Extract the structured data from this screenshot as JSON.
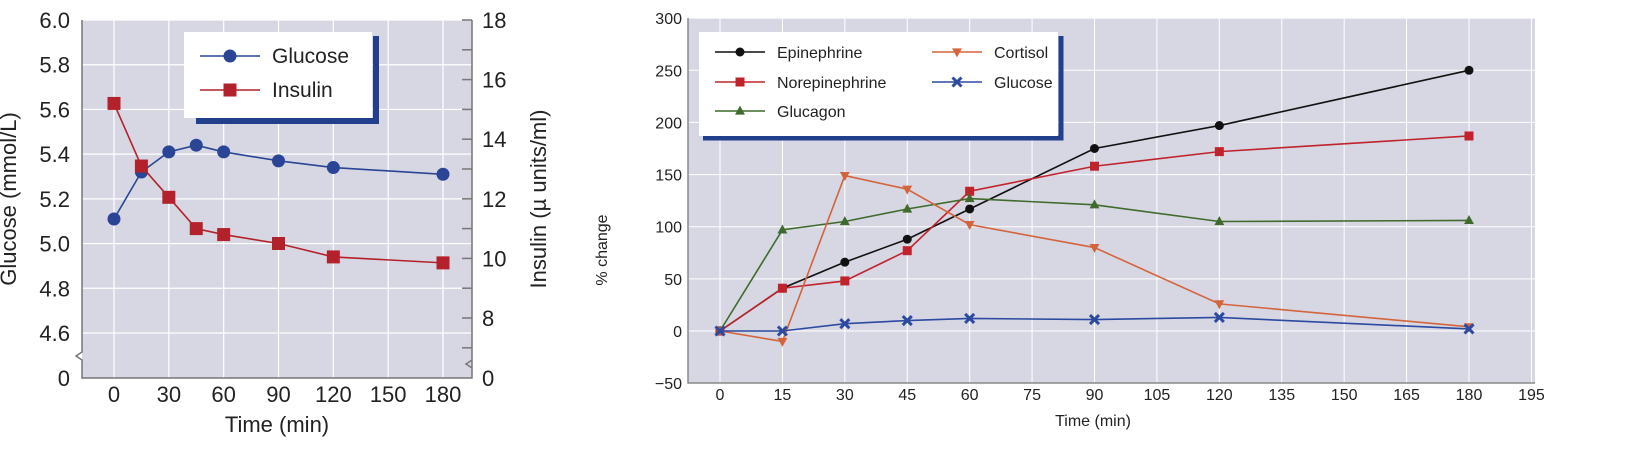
{
  "chart_data": [
    {
      "type": "line",
      "xlabel": "Time (min)",
      "ylabel": "Glucose (mmol/L)",
      "y2label": "Insulin (µ units/ml)",
      "x_ticks": [
        0,
        30,
        60,
        90,
        120,
        150,
        180
      ],
      "y_ticks": [
        "0",
        "4.6",
        "4.8",
        "5.0",
        "5.2",
        "5.4",
        "5.6",
        "5.8",
        "6.0"
      ],
      "y2_ticks": [
        "0",
        "8",
        "10",
        "12",
        "14",
        "16",
        "18"
      ],
      "ylim": [
        4.6,
        6.0
      ],
      "y2lim": [
        8,
        18
      ],
      "axis_break": true,
      "grid": true,
      "legend": "top-center",
      "series": [
        {
          "name": "Glucose",
          "axis": "left",
          "marker": "circle",
          "color": "#2a4596",
          "x": [
            0,
            15,
            30,
            45,
            60,
            90,
            120,
            180
          ],
          "y": [
            5.11,
            5.32,
            5.41,
            5.44,
            5.41,
            5.37,
            5.34,
            5.31
          ]
        },
        {
          "name": "Insulin",
          "axis": "right",
          "marker": "square",
          "color": "#b3222a",
          "x": [
            0,
            15,
            30,
            45,
            60,
            90,
            120,
            180
          ],
          "y": [
            15.2,
            13.1,
            12.05,
            11.0,
            10.8,
            10.5,
            10.05,
            9.85
          ]
        }
      ]
    },
    {
      "type": "line",
      "xlabel": "Time (min)",
      "ylabel": "% change",
      "x_ticks": [
        0,
        15,
        30,
        45,
        60,
        75,
        90,
        105,
        120,
        135,
        150,
        165,
        180,
        195
      ],
      "y_ticks": [
        "−50",
        "0",
        "50",
        "100",
        "150",
        "200",
        "250",
        "300"
      ],
      "ylim": [
        -50,
        300
      ],
      "grid": true,
      "legend": "top-left",
      "series": [
        {
          "name": "Epinephrine",
          "marker": "circle",
          "color": "#111111",
          "x": [
            0,
            15,
            30,
            45,
            60,
            90,
            120,
            180
          ],
          "y": [
            0,
            41,
            66,
            88,
            117,
            175,
            197,
            250
          ]
        },
        {
          "name": "Norepinephrine",
          "marker": "square",
          "color": "#c0232c",
          "x": [
            0,
            15,
            30,
            45,
            60,
            90,
            120,
            180
          ],
          "y": [
            0,
            41,
            48,
            77,
            134,
            158,
            172,
            187
          ]
        },
        {
          "name": "Glucagon",
          "marker": "triangle-up",
          "color": "#3f6b2c",
          "x": [
            0,
            15,
            30,
            45,
            60,
            90,
            120,
            180
          ],
          "y": [
            0,
            97,
            105,
            117,
            127,
            121,
            105,
            106
          ]
        },
        {
          "name": "Cortisol",
          "marker": "triangle-down",
          "color": "#d4643c",
          "x": [
            0,
            15,
            30,
            45,
            60,
            90,
            120,
            180
          ],
          "y": [
            0,
            -10,
            149,
            136,
            102,
            80,
            26,
            4
          ]
        },
        {
          "name": "Glucose",
          "marker": "x",
          "color": "#2b4aa0",
          "x": [
            0,
            15,
            30,
            45,
            60,
            90,
            120,
            180
          ],
          "y": [
            0,
            0,
            7,
            10,
            12,
            11,
            13,
            2
          ]
        }
      ]
    }
  ],
  "colors": {
    "plot_bg": "#d7d7e3",
    "grid": "#ffffff",
    "legend_shadow": "#223f8c"
  }
}
